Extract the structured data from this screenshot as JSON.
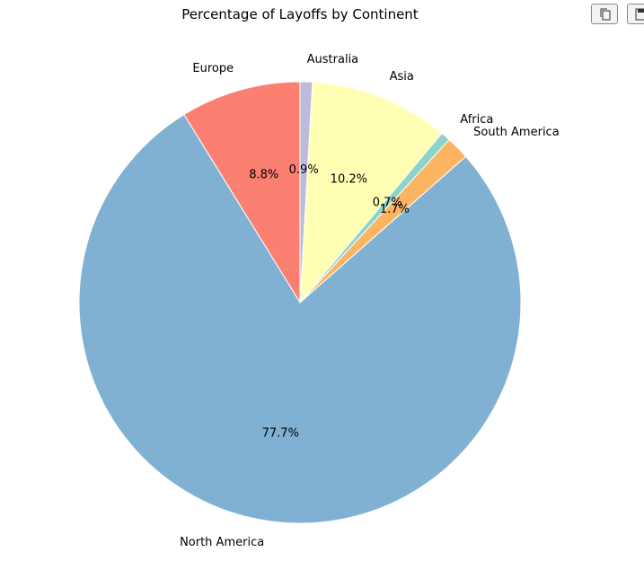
{
  "toolbar": {
    "copy_icon": "copy-icon",
    "save_icon": "save-icon"
  },
  "chart_data": {
    "type": "pie",
    "title": "Percentage of Layoffs by Continent",
    "start_angle_deg": 90,
    "direction": "counterclockwise",
    "slices": [
      {
        "label": "Europe",
        "value": 8.8,
        "pct_label": "8.8%",
        "color": "#fb8072"
      },
      {
        "label": "North America",
        "value": 77.7,
        "pct_label": "77.7%",
        "color": "#80b1d3"
      },
      {
        "label": "South America",
        "value": 1.7,
        "pct_label": "1.7%",
        "color": "#fdb462"
      },
      {
        "label": "Africa",
        "value": 0.7,
        "pct_label": "0.7%",
        "color": "#8dd3c7"
      },
      {
        "label": "Asia",
        "value": 10.2,
        "pct_label": "10.2%",
        "color": "#ffffb3"
      },
      {
        "label": "Australia",
        "value": 0.9,
        "pct_label": "0.9%",
        "color": "#bebada"
      }
    ]
  }
}
